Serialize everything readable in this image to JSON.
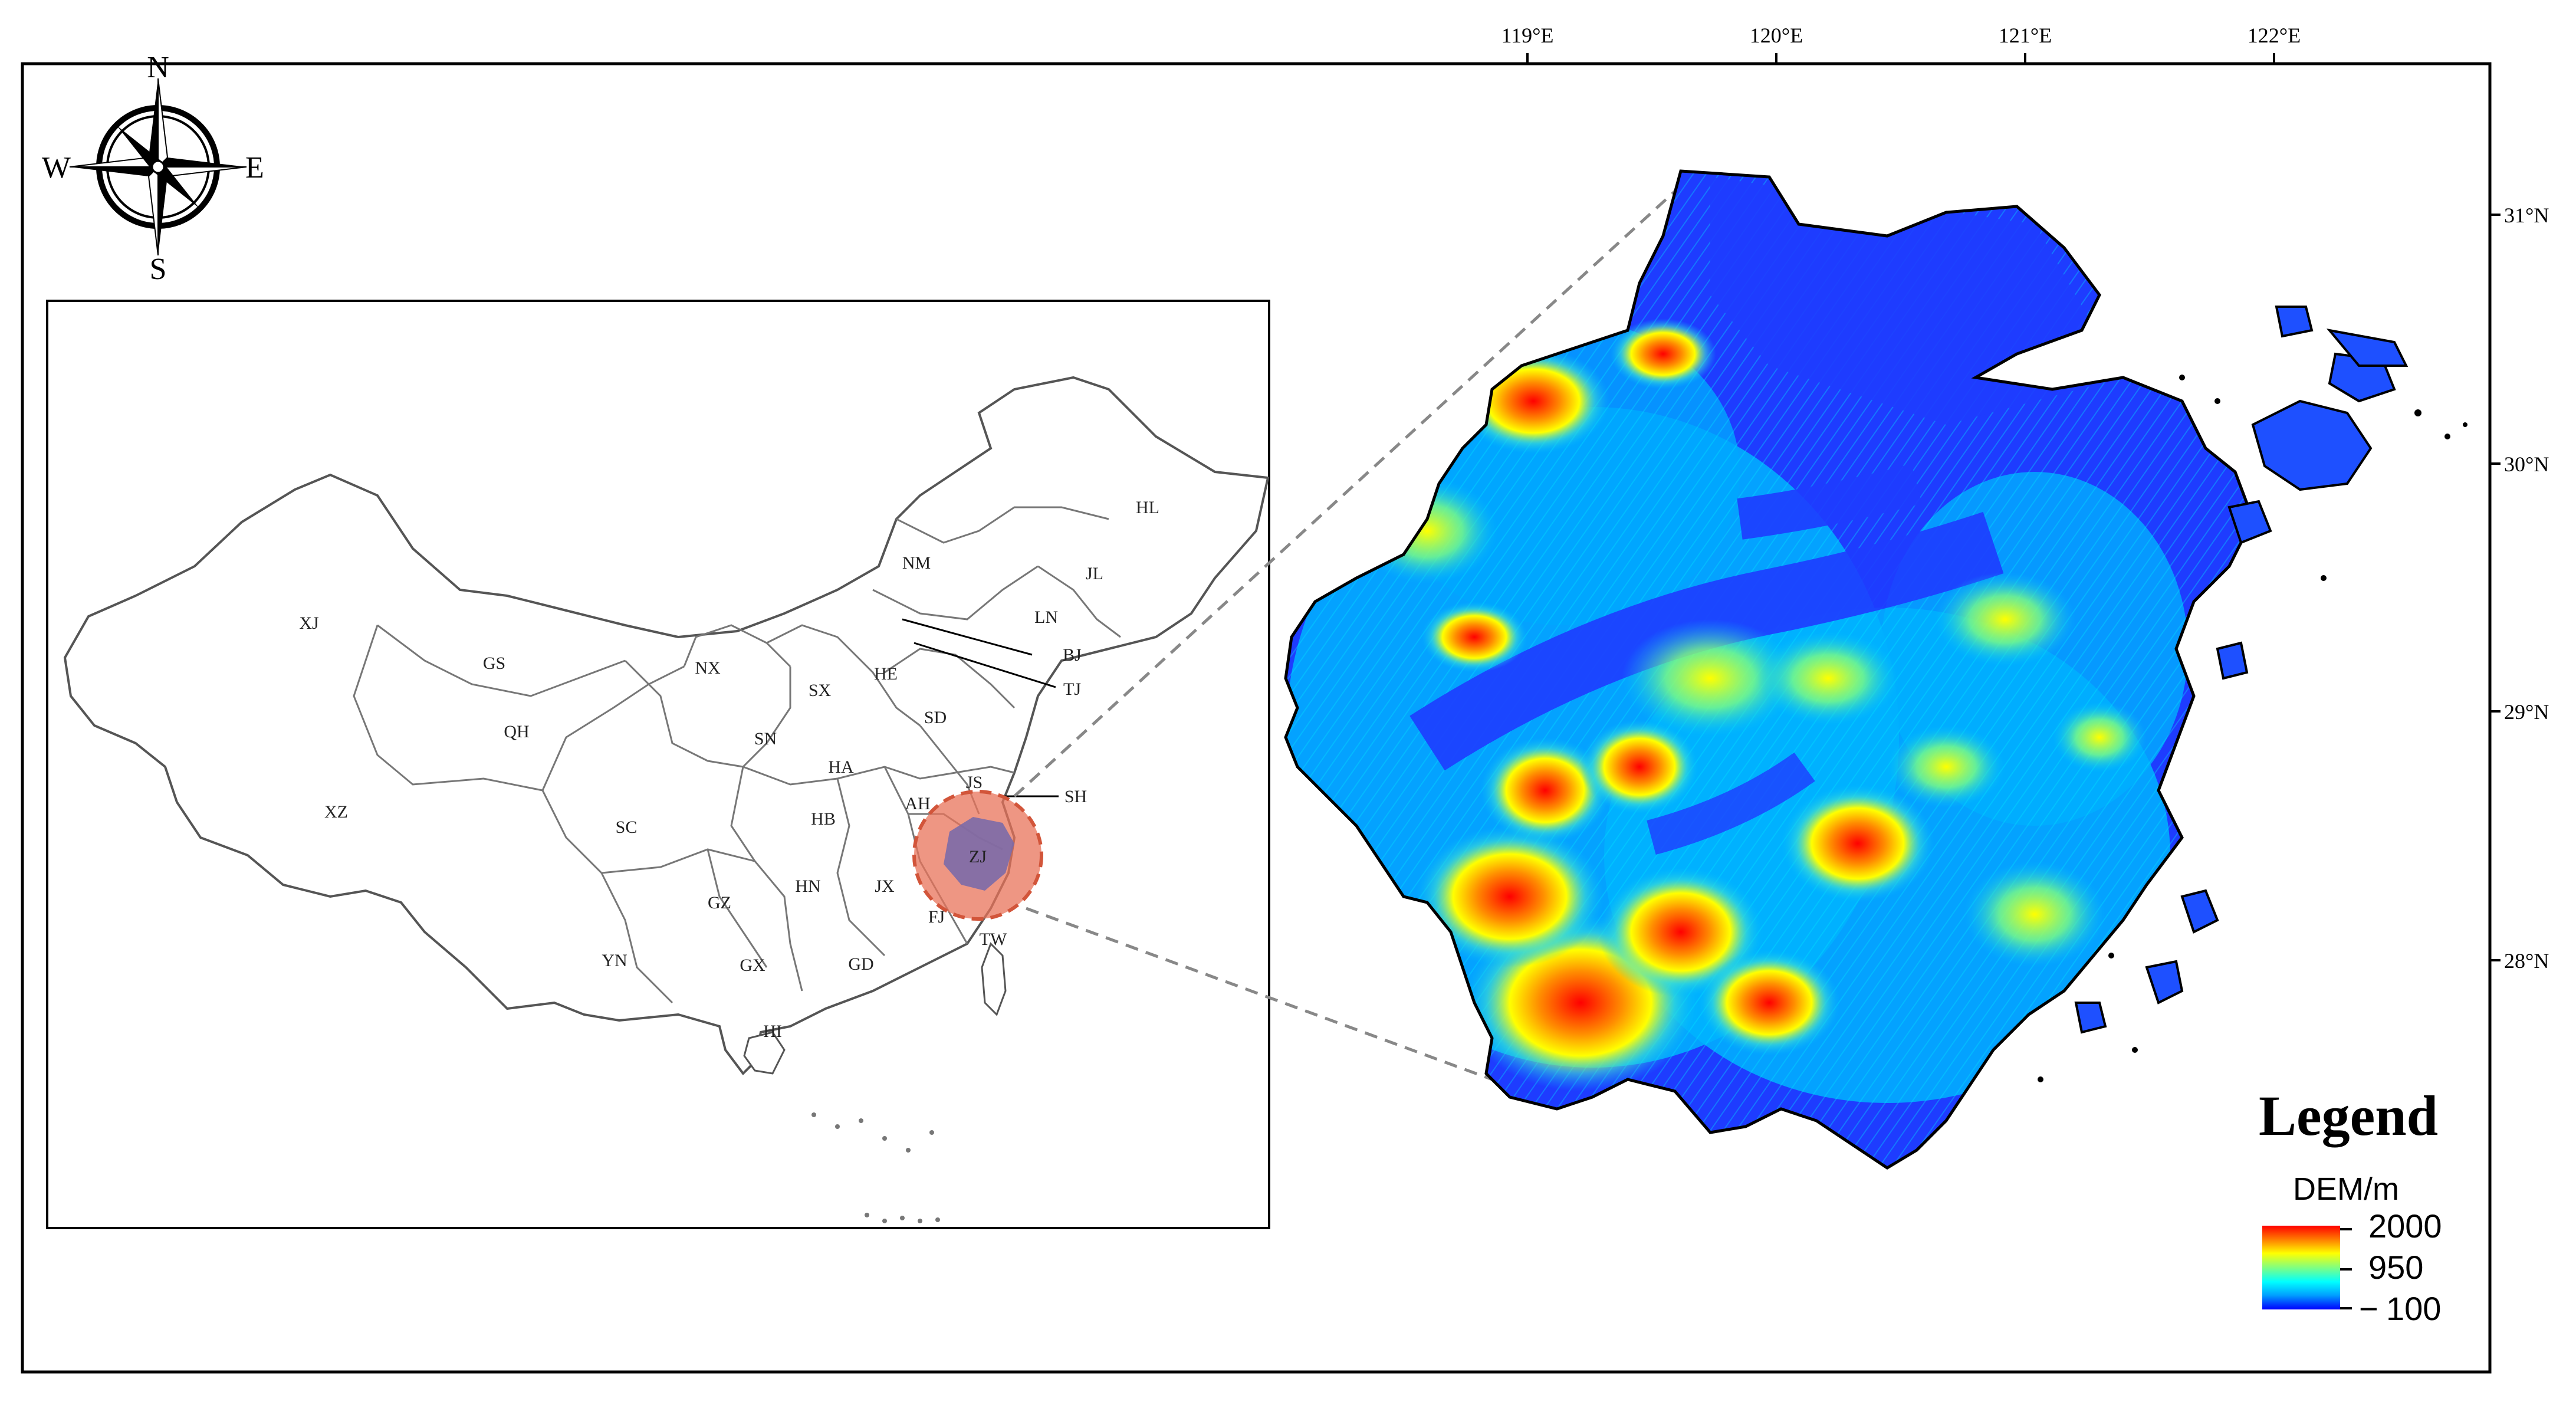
{
  "map": {
    "compass": {
      "north": "N",
      "south": "S",
      "east": "E",
      "west": "W"
    },
    "longitude_ticks": [
      "119°E",
      "120°E",
      "121°E",
      "122°E"
    ],
    "latitude_ticks": [
      "31°N",
      "30°N",
      "29°N",
      "28°N"
    ],
    "china_inset": {
      "province_labels": [
        "HL",
        "JL",
        "LN",
        "NM",
        "BJ",
        "TJ",
        "XJ",
        "GS",
        "NX",
        "SX",
        "HE",
        "SD",
        "QH",
        "SN",
        "HA",
        "JS",
        "SH",
        "AH",
        "XZ",
        "SC",
        "HB",
        "ZJ",
        "GZ",
        "HN",
        "JX",
        "FJ",
        "TW",
        "YN",
        "GX",
        "GD",
        "HI"
      ],
      "highlighted_province": "ZJ",
      "highlight_color": "#e8735a"
    },
    "legend": {
      "title": "Legend",
      "subtitle": "DEM/m",
      "max_label": "2000",
      "mid_label": "950",
      "min_label": "100",
      "min_prefix": "−",
      "colors": [
        "#0000ff",
        "#00a0ff",
        "#00ffff",
        "#80ff80",
        "#ffff00",
        "#ff8000",
        "#ff0000"
      ]
    }
  }
}
